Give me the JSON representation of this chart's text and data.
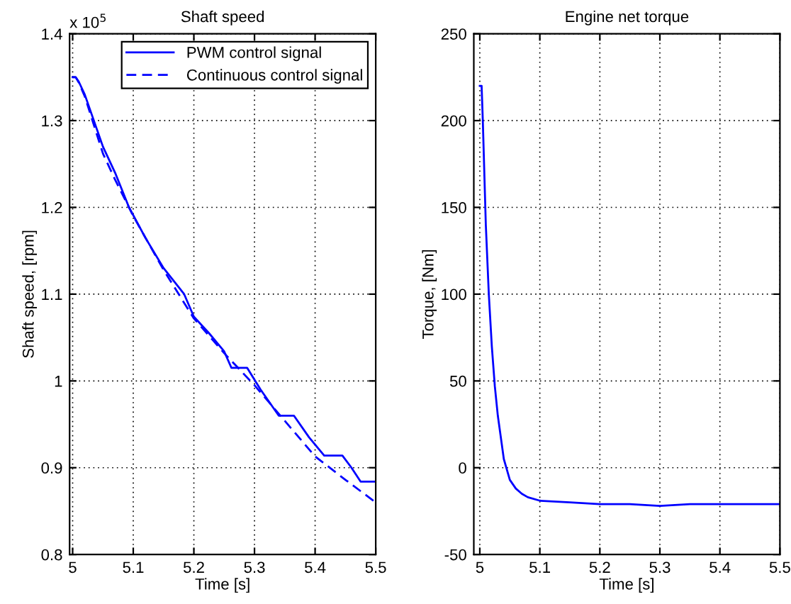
{
  "chart_data": [
    {
      "type": "line",
      "title": "Shaft speed",
      "xlabel": "Time [s]",
      "ylabel": "Shaft speed, [rpm]",
      "annotations": [
        "x 10$^{5}$"
      ],
      "xlim": [
        4.995,
        5.5
      ],
      "xticks": [
        5,
        5.1,
        5.2,
        5.3,
        5.4,
        5.5
      ],
      "ylim": [
        0.8,
        1.4
      ],
      "yticks": [
        0.8,
        0.9,
        1,
        1.1,
        1.2,
        1.3,
        1.4
      ],
      "grid": true,
      "legend": "top right",
      "series": [
        {
          "name": "PWM control signal",
          "color": "#0000ff",
          "line_style": "solid",
          "x": [
            5.0,
            5.005,
            5.01,
            5.02,
            5.03,
            5.05,
            5.07,
            5.093,
            5.12,
            5.15,
            5.184,
            5.2,
            5.225,
            5.25,
            5.262,
            5.288,
            5.31,
            5.34,
            5.365,
            5.39,
            5.415,
            5.445,
            5.46,
            5.475,
            5.5
          ],
          "values": [
            1.35,
            1.35,
            1.345,
            1.33,
            1.31,
            1.27,
            1.24,
            1.2,
            1.165,
            1.13,
            1.1,
            1.074,
            1.055,
            1.034,
            1.015,
            1.015,
            0.99,
            0.96,
            0.96,
            0.935,
            0.914,
            0.914,
            0.9,
            0.884,
            0.884
          ]
        },
        {
          "name": "Continuous control signal",
          "color": "#0000ff",
          "line_style": "dashed",
          "x": [
            5.0,
            5.005,
            5.01,
            5.02,
            5.03,
            5.05,
            5.07,
            5.1,
            5.15,
            5.2,
            5.25,
            5.3,
            5.35,
            5.4,
            5.45,
            5.5
          ],
          "values": [
            1.35,
            1.35,
            1.344,
            1.328,
            1.306,
            1.262,
            1.232,
            1.19,
            1.128,
            1.072,
            1.032,
            0.995,
            0.954,
            0.913,
            0.886,
            0.86
          ]
        }
      ]
    },
    {
      "type": "line",
      "title": "Engine net torque",
      "xlabel": "Time [s]",
      "ylabel": "Torque, [Nm]",
      "xlim": [
        4.99,
        5.5
      ],
      "xticks": [
        5,
        5.1,
        5.2,
        5.3,
        5.4,
        5.5
      ],
      "ylim": [
        -50,
        250
      ],
      "yticks": [
        -50,
        0,
        50,
        100,
        150,
        200,
        250
      ],
      "grid": true,
      "series": [
        {
          "color": "#0000ff",
          "line_style": "solid",
          "x": [
            5.0,
            5.003,
            5.005,
            5.01,
            5.015,
            5.02,
            5.025,
            5.03,
            5.04,
            5.05,
            5.06,
            5.07,
            5.08,
            5.1,
            5.15,
            5.2,
            5.25,
            5.3,
            5.35,
            5.4,
            5.45,
            5.5
          ],
          "values": [
            220,
            220,
            200,
            140,
            100,
            70,
            47,
            30,
            5,
            -7,
            -12,
            -15,
            -17,
            -19,
            -20,
            -21,
            -21,
            -22,
            -21,
            -21,
            -21,
            -21
          ]
        }
      ]
    }
  ]
}
